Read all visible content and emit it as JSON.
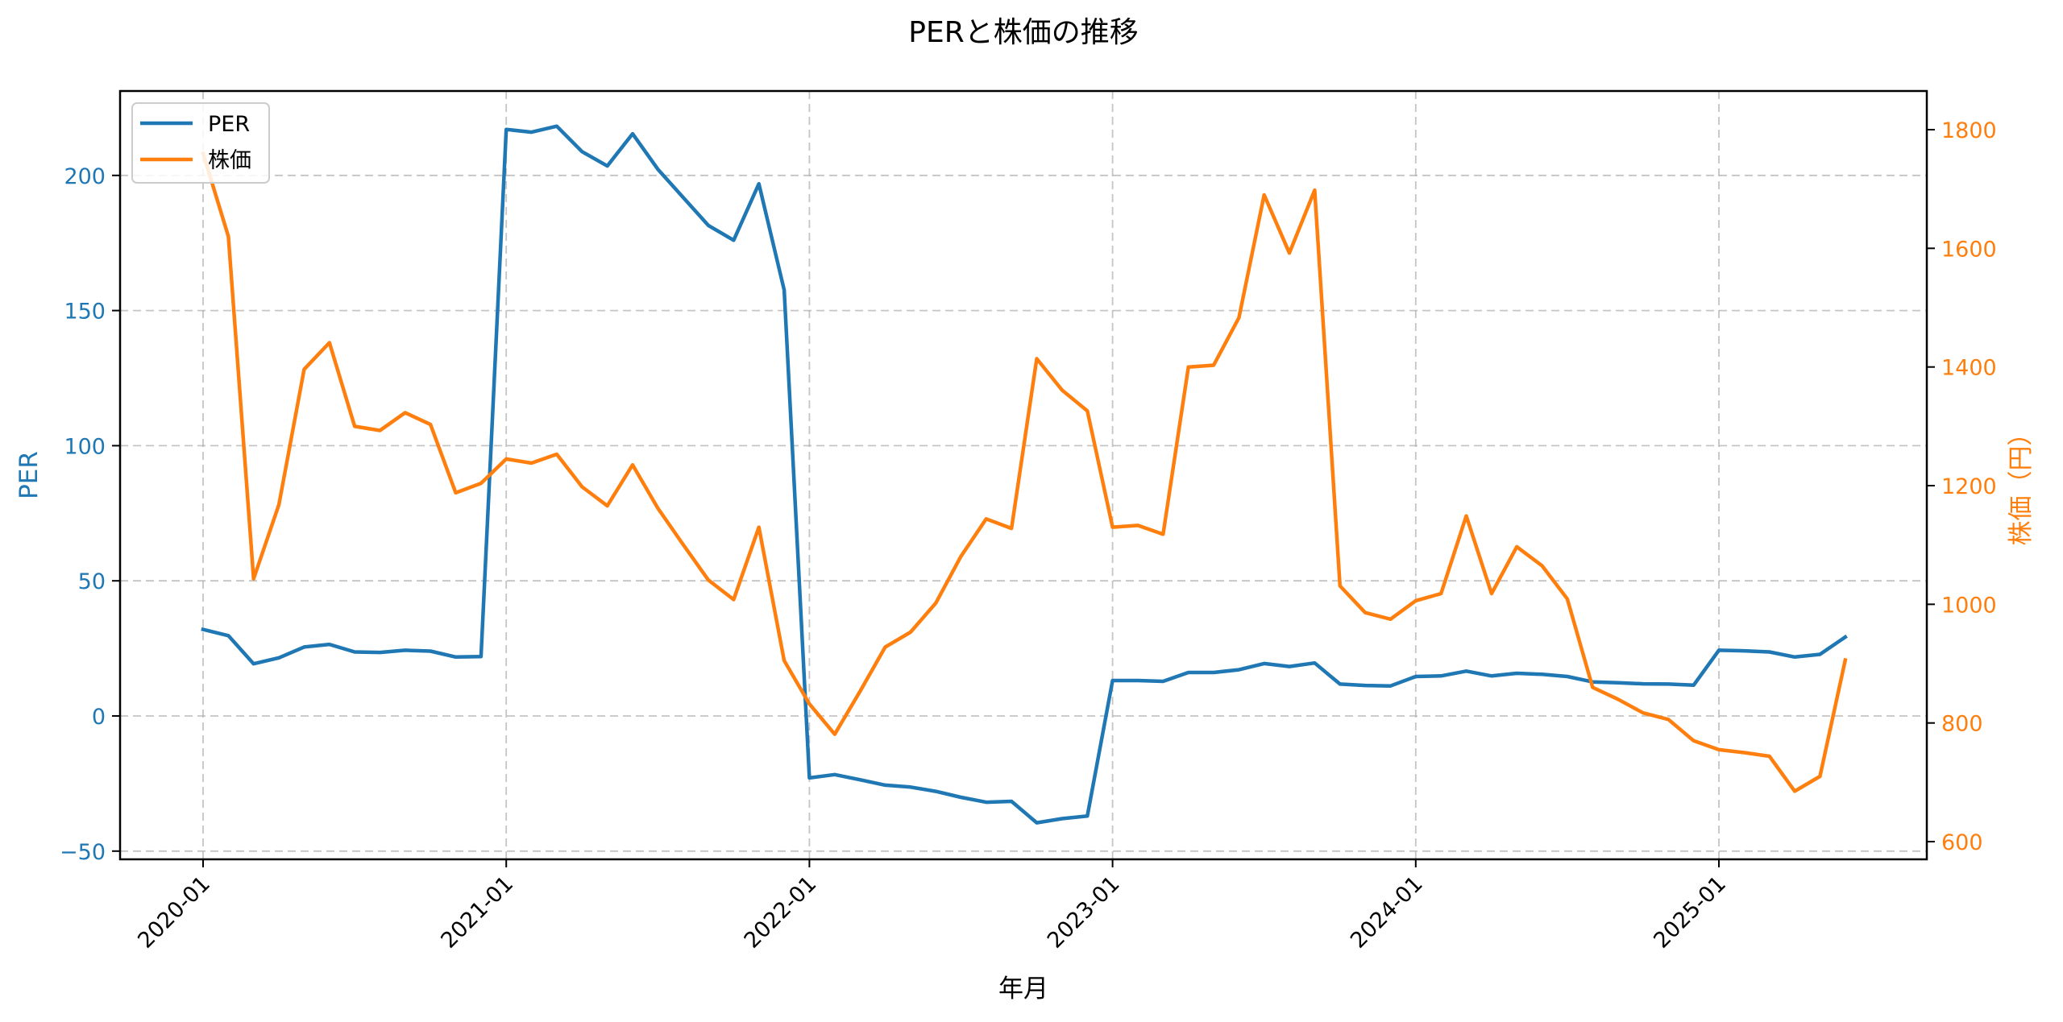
{
  "chart_data": {
    "type": "line",
    "title": "PERと株価の推移",
    "xlabel": "年月",
    "ylabel_left": "PER",
    "ylabel_right": "株価（円）",
    "x": [
      "2020-01",
      "2020-02",
      "2020-03",
      "2020-04",
      "2020-05",
      "2020-06",
      "2020-07",
      "2020-08",
      "2020-09",
      "2020-10",
      "2020-11",
      "2020-12",
      "2021-01",
      "2021-02",
      "2021-03",
      "2021-04",
      "2021-05",
      "2021-06",
      "2021-07",
      "2021-08",
      "2021-09",
      "2021-10",
      "2021-11",
      "2021-12",
      "2022-01",
      "2022-02",
      "2022-03",
      "2022-04",
      "2022-05",
      "2022-06",
      "2022-07",
      "2022-08",
      "2022-09",
      "2022-10",
      "2022-11",
      "2022-12",
      "2023-01",
      "2023-02",
      "2023-03",
      "2023-04",
      "2023-05",
      "2023-06",
      "2023-07",
      "2023-08",
      "2023-09",
      "2023-10",
      "2023-11",
      "2023-12",
      "2024-01",
      "2024-02",
      "2024-03",
      "2024-04",
      "2024-05",
      "2024-06",
      "2024-07",
      "2024-08",
      "2024-09",
      "2024-10",
      "2024-11",
      "2024-12",
      "2025-01",
      "2025-02",
      "2025-03",
      "2025-04",
      "2025-05",
      "2025-06"
    ],
    "x_tick_labels": [
      "2020-01",
      "2021-01",
      "2022-01",
      "2023-01",
      "2024-01",
      "2025-01"
    ],
    "series": [
      {
        "name": "PER",
        "axis": "left",
        "color": "#1f77b4",
        "values": [
          32.0,
          29.7,
          19.3,
          21.5,
          25.5,
          26.5,
          23.7,
          23.5,
          24.3,
          24.0,
          21.8,
          22.0,
          217.0,
          216.0,
          218.2,
          208.8,
          203.5,
          215.4,
          202.3,
          191.9,
          181.5,
          176.0,
          196.9,
          157.6,
          -22.9,
          -21.7,
          -23.6,
          -25.6,
          -26.3,
          -27.9,
          -30.1,
          -31.9,
          -31.6,
          -39.5,
          -38.0,
          -37.0,
          13.1,
          13.1,
          12.8,
          16.1,
          16.1,
          17.1,
          19.4,
          18.3,
          19.6,
          11.8,
          11.3,
          11.1,
          14.6,
          14.8,
          16.6,
          14.8,
          15.8,
          15.4,
          14.6,
          12.6,
          12.3,
          11.9,
          11.8,
          11.4,
          24.3,
          24.1,
          23.7,
          21.8,
          22.8,
          29.2
        ]
      },
      {
        "name": "株価",
        "axis": "right",
        "color": "#ff7f0e",
        "values": [
          1760,
          1620,
          1043,
          1168,
          1396,
          1441,
          1300,
          1293,
          1323,
          1303,
          1188,
          1204,
          1245,
          1238,
          1253,
          1198,
          1166,
          1235,
          1162,
          1101,
          1041,
          1008,
          1130,
          905,
          832,
          781,
          853,
          928,
          953,
          1002,
          1081,
          1144,
          1128,
          1414,
          1361,
          1326,
          1130,
          1133,
          1118,
          1400,
          1403,
          1483,
          1690,
          1592,
          1698,
          1031,
          986,
          975,
          1006,
          1018,
          1149,
          1018,
          1097,
          1065,
          1009,
          860,
          840,
          817,
          806,
          770,
          755,
          750,
          744,
          685,
          710,
          906
        ]
      }
    ],
    "y_left": {
      "ticks": [
        -50,
        0,
        50,
        100,
        150,
        200
      ],
      "ylim": [
        -53,
        231
      ],
      "color": "#1f77b4"
    },
    "y_right": {
      "ticks": [
        600,
        800,
        1000,
        1200,
        1400,
        1600,
        1800
      ],
      "ylim": [
        570,
        1865
      ],
      "color": "#ff7f0e"
    },
    "grid": true,
    "grid_style": "dashed",
    "legend": {
      "position": "upper left",
      "entries": [
        "PER",
        "株価"
      ]
    },
    "x_tick_rotation": 45
  }
}
